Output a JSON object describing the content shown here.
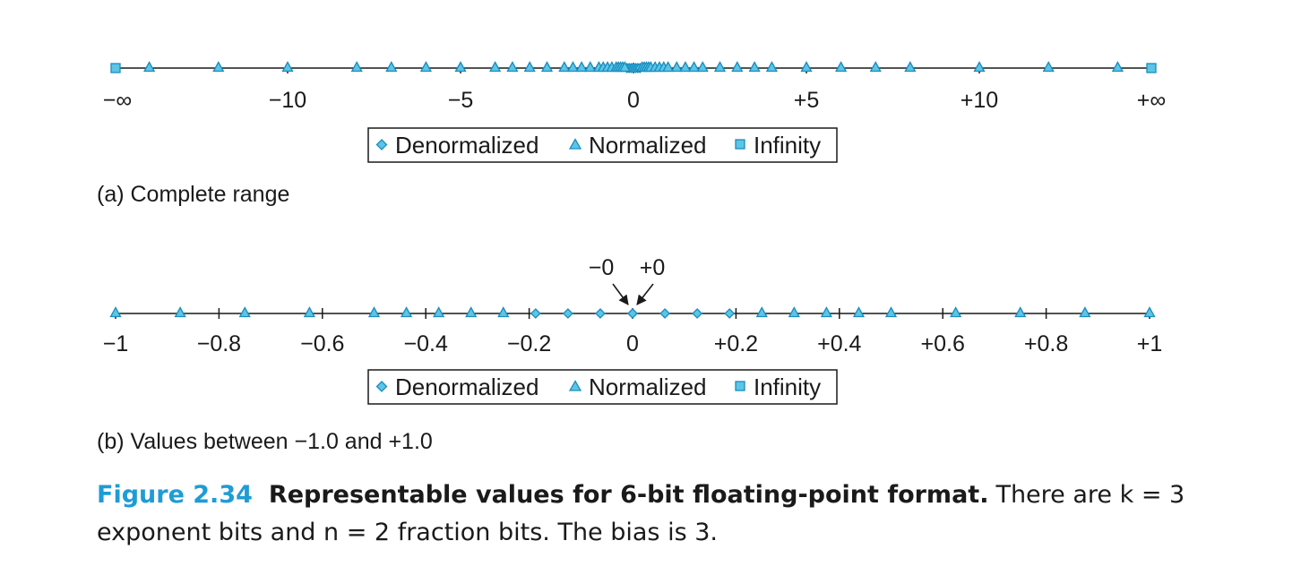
{
  "colors": {
    "marker_fill": "#5cc5e6",
    "marker_stroke": "#1a8dbf",
    "axis": "#1a1a1a",
    "figure_number": "#1e9cd6"
  },
  "chart_data": [
    {
      "type": "scatter",
      "panel": "a",
      "subcaption": "(a) Complete range",
      "xlim": [
        -15,
        15
      ],
      "ticks": [
        {
          "value": -10,
          "label": "−10"
        },
        {
          "value": -5,
          "label": "−5"
        },
        {
          "value": 0,
          "label": "0"
        },
        {
          "value": 5,
          "label": "+5"
        },
        {
          "value": 10,
          "label": "+10"
        }
      ],
      "end_labels": {
        "left": "−∞",
        "right": "+∞"
      },
      "legend": {
        "position": "bottom-center",
        "entries": [
          "Denormalized",
          "Normalized",
          "Infinity"
        ]
      },
      "series": [
        {
          "name": "Denormalized",
          "marker": "diamond",
          "values": [
            -0.1875,
            -0.125,
            -0.0625,
            0,
            0,
            0.0625,
            0.125,
            0.1875
          ]
        },
        {
          "name": "Normalized",
          "marker": "triangle",
          "values": [
            -14,
            -12,
            -10,
            -8,
            -7,
            -6,
            -5,
            -4,
            -3.5,
            -3,
            -2.5,
            -2,
            -1.75,
            -1.5,
            -1.25,
            -1,
            -0.875,
            -0.75,
            -0.625,
            -0.5,
            -0.4375,
            -0.375,
            -0.3125,
            -0.25,
            0.25,
            0.3125,
            0.375,
            0.4375,
            0.5,
            0.625,
            0.75,
            0.875,
            1,
            1.25,
            1.5,
            1.75,
            2,
            2.5,
            3,
            3.5,
            4,
            5,
            6,
            7,
            8,
            10,
            12,
            14
          ]
        },
        {
          "name": "Infinity",
          "marker": "square",
          "values": [
            "-inf",
            "+inf"
          ]
        }
      ]
    },
    {
      "type": "scatter",
      "panel": "b",
      "subcaption": "(b) Values between −1.0 and +1.0",
      "xlim": [
        -1,
        1
      ],
      "ticks": [
        {
          "value": -1,
          "label": "−1"
        },
        {
          "value": -0.8,
          "label": "−0.8"
        },
        {
          "value": -0.6,
          "label": "−0.6"
        },
        {
          "value": -0.4,
          "label": "−0.4"
        },
        {
          "value": -0.2,
          "label": "−0.2"
        },
        {
          "value": 0,
          "label": "0"
        },
        {
          "value": 0.2,
          "label": "+0.2"
        },
        {
          "value": 0.4,
          "label": "+0.4"
        },
        {
          "value": 0.6,
          "label": "+0.6"
        },
        {
          "value": 0.8,
          "label": "+0.8"
        },
        {
          "value": 1,
          "label": "+1"
        }
      ],
      "annotations": [
        {
          "text": "−0",
          "points_to": 0
        },
        {
          "text": "+0",
          "points_to": 0
        }
      ],
      "legend": {
        "position": "bottom-center",
        "entries": [
          "Denormalized",
          "Normalized",
          "Infinity"
        ]
      },
      "series": [
        {
          "name": "Denormalized",
          "marker": "diamond",
          "values": [
            -0.1875,
            -0.125,
            -0.0625,
            0,
            0,
            0.0625,
            0.125,
            0.1875
          ]
        },
        {
          "name": "Normalized",
          "marker": "triangle",
          "values": [
            -1,
            -0.875,
            -0.75,
            -0.625,
            -0.5,
            -0.4375,
            -0.375,
            -0.3125,
            -0.25,
            0.25,
            0.3125,
            0.375,
            0.4375,
            0.5,
            0.625,
            0.75,
            0.875,
            1
          ]
        },
        {
          "name": "Infinity",
          "marker": "square",
          "values": []
        }
      ]
    }
  ],
  "caption": {
    "number": "Figure 2.34",
    "title": "Representable values for 6-bit floating-point format.",
    "body": "There are k = 3 exponent bits and n = 2 fraction bits. The bias is 3."
  }
}
